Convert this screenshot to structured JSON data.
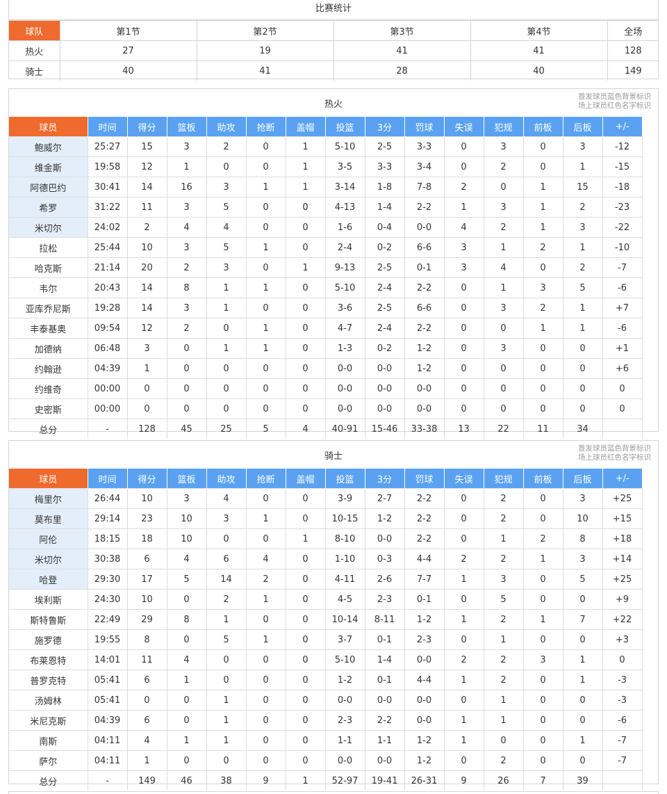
{
  "score": {
    "title": "比赛统计",
    "header": [
      "球队",
      "第1节",
      "第2节",
      "第3节",
      "第4节",
      "全场"
    ],
    "rows": [
      [
        "热火",
        "27",
        "19",
        "41",
        "41",
        "128"
      ],
      [
        "骑士",
        "40",
        "41",
        "28",
        "40",
        "149"
      ]
    ]
  },
  "legend": {
    "line1": "首发球员蓝色背景标识",
    "line2": "场上球员红色名字标识"
  },
  "columns": [
    "球员",
    "时间",
    "得分",
    "篮板",
    "助攻",
    "抢断",
    "盖帽",
    "投篮",
    "3分",
    "罚球",
    "失误",
    "犯规",
    "前板",
    "后板",
    "+/-"
  ],
  "teams": [
    {
      "name": "热火",
      "players": [
        {
          "starter": true,
          "cells": [
            "鲍威尔",
            "25:27",
            "15",
            "3",
            "2",
            "0",
            "1",
            "5-10",
            "2-5",
            "3-3",
            "0",
            "3",
            "0",
            "3",
            "-12"
          ]
        },
        {
          "starter": true,
          "cells": [
            "维金斯",
            "19:58",
            "12",
            "1",
            "0",
            "0",
            "1",
            "3-5",
            "3-3",
            "3-4",
            "0",
            "2",
            "0",
            "1",
            "-15"
          ]
        },
        {
          "starter": true,
          "cells": [
            "阿德巴约",
            "30:41",
            "14",
            "16",
            "3",
            "1",
            "1",
            "3-14",
            "1-8",
            "7-8",
            "2",
            "0",
            "1",
            "15",
            "-18"
          ]
        },
        {
          "starter": true,
          "cells": [
            "希罗",
            "31:22",
            "11",
            "3",
            "5",
            "0",
            "0",
            "4-13",
            "1-4",
            "2-2",
            "1",
            "3",
            "1",
            "2",
            "-23"
          ]
        },
        {
          "starter": true,
          "cells": [
            "米切尔",
            "24:02",
            "2",
            "4",
            "4",
            "0",
            "0",
            "1-6",
            "0-4",
            "0-0",
            "4",
            "2",
            "1",
            "3",
            "-22"
          ]
        },
        {
          "starter": false,
          "cells": [
            "拉松",
            "25:44",
            "10",
            "3",
            "5",
            "1",
            "0",
            "2-4",
            "0-2",
            "6-6",
            "3",
            "1",
            "2",
            "1",
            "-10"
          ]
        },
        {
          "starter": false,
          "cells": [
            "哈克斯",
            "21:14",
            "20",
            "2",
            "3",
            "0",
            "1",
            "9-13",
            "2-5",
            "0-1",
            "3",
            "4",
            "0",
            "2",
            "-7"
          ]
        },
        {
          "starter": false,
          "cells": [
            "韦尔",
            "20:43",
            "14",
            "8",
            "1",
            "1",
            "0",
            "5-10",
            "2-4",
            "2-2",
            "0",
            "1",
            "3",
            "5",
            "-6"
          ]
        },
        {
          "starter": false,
          "cells": [
            "亚库乔尼斯",
            "19:28",
            "14",
            "3",
            "1",
            "0",
            "0",
            "3-6",
            "2-5",
            "6-6",
            "0",
            "3",
            "2",
            "1",
            "+7"
          ]
        },
        {
          "starter": false,
          "cells": [
            "丰泰基奥",
            "09:54",
            "12",
            "2",
            "0",
            "1",
            "0",
            "4-7",
            "2-4",
            "2-2",
            "0",
            "0",
            "1",
            "1",
            "-6"
          ]
        },
        {
          "starter": false,
          "cells": [
            "加德纳",
            "06:48",
            "3",
            "0",
            "1",
            "1",
            "0",
            "1-3",
            "0-2",
            "1-2",
            "0",
            "3",
            "0",
            "0",
            "+1"
          ]
        },
        {
          "starter": false,
          "cells": [
            "约翰逊",
            "04:39",
            "1",
            "0",
            "0",
            "0",
            "0",
            "0-0",
            "0-0",
            "1-2",
            "0",
            "0",
            "0",
            "0",
            "+6"
          ]
        },
        {
          "starter": false,
          "cells": [
            "约维奇",
            "00:00",
            "0",
            "0",
            "0",
            "0",
            "0",
            "0-0",
            "0-0",
            "0-0",
            "0",
            "0",
            "0",
            "0",
            "0"
          ]
        },
        {
          "starter": false,
          "cells": [
            "史密斯",
            "00:00",
            "0",
            "0",
            "0",
            "0",
            "0",
            "0-0",
            "0-0",
            "0-0",
            "0",
            "0",
            "0",
            "0",
            "0"
          ]
        }
      ],
      "total": [
        "总分",
        "-",
        "128",
        "45",
        "25",
        "5",
        "4",
        "40-91",
        "15-46",
        "33-38",
        "13",
        "22",
        "11",
        "34",
        ""
      ]
    },
    {
      "name": "骑士",
      "players": [
        {
          "starter": true,
          "cells": [
            "梅里尔",
            "26:44",
            "10",
            "3",
            "4",
            "0",
            "0",
            "3-9",
            "2-7",
            "2-2",
            "0",
            "2",
            "0",
            "3",
            "+25"
          ]
        },
        {
          "starter": true,
          "cells": [
            "莫布里",
            "29:14",
            "23",
            "10",
            "3",
            "1",
            "0",
            "10-15",
            "1-2",
            "2-2",
            "0",
            "2",
            "0",
            "10",
            "+15"
          ]
        },
        {
          "starter": true,
          "cells": [
            "阿伦",
            "18:15",
            "18",
            "10",
            "0",
            "0",
            "1",
            "8-10",
            "0-0",
            "2-2",
            "0",
            "1",
            "2",
            "8",
            "+18"
          ]
        },
        {
          "starter": true,
          "cells": [
            "米切尔",
            "30:38",
            "6",
            "4",
            "6",
            "4",
            "0",
            "1-10",
            "0-3",
            "4-4",
            "2",
            "2",
            "1",
            "3",
            "+14"
          ]
        },
        {
          "starter": true,
          "cells": [
            "哈登",
            "29:30",
            "17",
            "5",
            "14",
            "2",
            "0",
            "4-11",
            "2-6",
            "7-7",
            "1",
            "3",
            "0",
            "5",
            "+25"
          ]
        },
        {
          "starter": false,
          "cells": [
            "埃利斯",
            "24:30",
            "10",
            "0",
            "2",
            "1",
            "0",
            "4-5",
            "2-3",
            "0-1",
            "0",
            "5",
            "0",
            "0",
            "+9"
          ]
        },
        {
          "starter": false,
          "cells": [
            "斯特鲁斯",
            "22:49",
            "29",
            "8",
            "1",
            "0",
            "0",
            "10-14",
            "8-11",
            "1-2",
            "1",
            "2",
            "1",
            "7",
            "+22"
          ]
        },
        {
          "starter": false,
          "cells": [
            "施罗德",
            "19:55",
            "8",
            "0",
            "5",
            "1",
            "0",
            "3-7",
            "0-1",
            "2-3",
            "0",
            "1",
            "0",
            "0",
            "+3"
          ]
        },
        {
          "starter": false,
          "cells": [
            "布莱恩特",
            "14:01",
            "11",
            "4",
            "0",
            "0",
            "0",
            "5-10",
            "1-4",
            "0-0",
            "2",
            "2",
            "3",
            "1",
            "0"
          ]
        },
        {
          "starter": false,
          "cells": [
            "普罗克特",
            "05:41",
            "6",
            "1",
            "0",
            "0",
            "0",
            "1-2",
            "0-1",
            "4-4",
            "1",
            "2",
            "0",
            "1",
            "-3"
          ]
        },
        {
          "starter": false,
          "cells": [
            "汤姆林",
            "05:41",
            "0",
            "0",
            "1",
            "0",
            "0",
            "0-0",
            "0-0",
            "0-0",
            "0",
            "1",
            "0",
            "0",
            "-3"
          ]
        },
        {
          "starter": false,
          "cells": [
            "米尼克斯",
            "04:39",
            "6",
            "0",
            "1",
            "0",
            "0",
            "2-3",
            "2-2",
            "0-0",
            "1",
            "1",
            "0",
            "0",
            "-6"
          ]
        },
        {
          "starter": false,
          "cells": [
            "南斯",
            "04:11",
            "4",
            "1",
            "1",
            "0",
            "0",
            "1-1",
            "1-1",
            "1-2",
            "1",
            "0",
            "0",
            "1",
            "-7"
          ]
        },
        {
          "starter": false,
          "cells": [
            "萨尔",
            "04:11",
            "1",
            "0",
            "0",
            "0",
            "0",
            "0-0",
            "0-0",
            "1-2",
            "0",
            "2",
            "0",
            "0",
            "-7"
          ]
        }
      ],
      "total": [
        "总分",
        "-",
        "149",
        "46",
        "38",
        "9",
        "1",
        "52-97",
        "19-41",
        "26-31",
        "9",
        "26",
        "7",
        "39",
        ""
      ]
    }
  ],
  "colors": {
    "team_header": "#ef6a2d",
    "column_header": "#5aa2f1",
    "starter_bg": "#e4eefb"
  }
}
